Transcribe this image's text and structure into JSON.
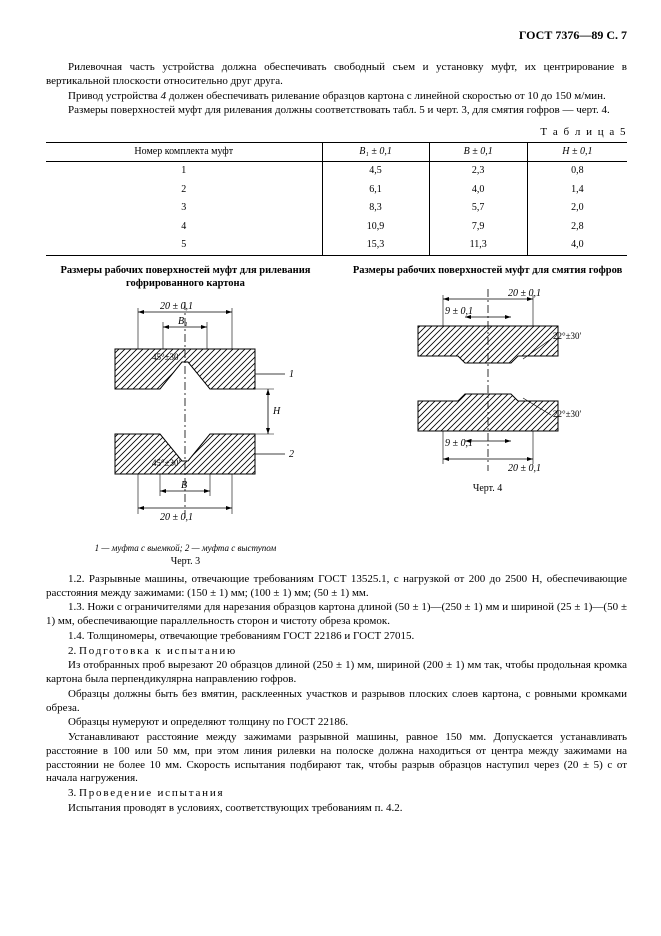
{
  "header": "ГОСТ 7376—89 С. 7",
  "p1": "Рилевочная часть устройства должна обеспечивать свободный съем и установку муфт, их центрирование в вертикальной плоскости относительно друг друга.",
  "p2_a": "Привод устройства ",
  "p2_i": "4",
  "p2_b": " должен обеспечивать рилевание образцов картона с линейной скоростью от 10 до 150  м/мин.",
  "p3": "Размеры поверхностей муфт для рилевания должны соответствовать табл.  5 и черт.  3, для смятия гофров — черт.  4.",
  "table_label": "Т а б л и ц а  5",
  "table": {
    "headers": [
      "Номер комплекта муфт",
      "B₁  ±  0,1",
      "B  ±  0,1",
      "H  ±  0,1"
    ],
    "rows": [
      [
        "1",
        "4,5",
        "2,3",
        "0,8"
      ],
      [
        "2",
        "6,1",
        "4,0",
        "1,4"
      ],
      [
        "3",
        "8,3",
        "5,7",
        "2,0"
      ],
      [
        "4",
        "10,9",
        "7,9",
        "2,8"
      ],
      [
        "5",
        "15,3",
        "11,3",
        "4,0"
      ]
    ]
  },
  "fig3": {
    "title": "Размеры рабочих поверхностей муфт для рилевания гофрированного картона",
    "dim_top": "20 ± 0,1",
    "dim_B1": "B₁",
    "angle_top": "45°±30′",
    "angle_bot": "45°±30′",
    "dim_H": "H",
    "dim_B": "B",
    "dim_bot": "20 ± 0,1",
    "ref1": "1",
    "ref2": "2",
    "legend_a": "1 ",
    "legend_b": "— муфта с выемкой;  ",
    "legend_c": "2 ",
    "legend_d": "— муфта с выступом",
    "caption": "Черт. 3"
  },
  "fig4": {
    "title": "Размеры рабочих поверхностей муфт для смятия гофров",
    "dim_top": "20 ± 0,1",
    "dim_9a": "9 ± 0,1",
    "angle_top": "22°±30′",
    "angle_bot": "22°±30′",
    "dim_9b": "9 ± 0,1",
    "dim_bot": "20 ± 0,1",
    "caption": "Черт. 4"
  },
  "p4": "1.2.  Разрывные машины, отвечающие требованиям ГОСТ  13525.1, с нагрузкой от 200 до 2500  Н, обеспечивающие расстояния между зажимами: (150  ±  1)  мм; (100  ±  1)  мм; (50  ±  1)  мм.",
  "p5": "1.3.  Ножи с ограничителями для нарезания образцов картона длиной (50  ±  1)—(250  ±  1)  мм и шириной (25  ±  1)—(50  ±  1)  мм, обеспечивающие параллельность сторон и чистоту обреза кромок.",
  "p6": "1.4.  Толщиномеры, отвечающие требованиям ГОСТ  22186 и ГОСТ  27015.",
  "p7_a": "2.  ",
  "p7_b": "Подготовка к испытанию",
  "p8": "Из отобранных проб вырезают 20 образцов длиной (250  ±  1)  мм, шириной (200  ±  1)  мм так, чтобы продольная кромка картона была перпендикулярна направлению гофров.",
  "p9": "Образцы должны быть без вмятин, расклеенных участков и разрывов плоских слоев картона, с ровными кромками обреза.",
  "p10": "Образцы нумеруют и определяют толщину по ГОСТ  22186.",
  "p11": "Устанавливают расстояние между зажимами разрывной машины, равное 150  мм. Допускается устанав­ливать расстояние в 100 или 50  мм, при этом линия рилевки на полоске должна находиться от центра между зажимами на расстоянии не более 10  мм. Скорость испытания подбирают так, чтобы разрыв образцов наступил через (20  ±  5)  с от начала нагружения.",
  "p12_a": "3.  ",
  "p12_b": "Проведение испытания",
  "p13": "Испытания проводят в условиях, соответствующих требованиям п.  4.2.",
  "svg": {
    "stroke": "#000000",
    "hatch": "#000000",
    "fill": "#ffffff",
    "font": "10px Times New Roman"
  }
}
